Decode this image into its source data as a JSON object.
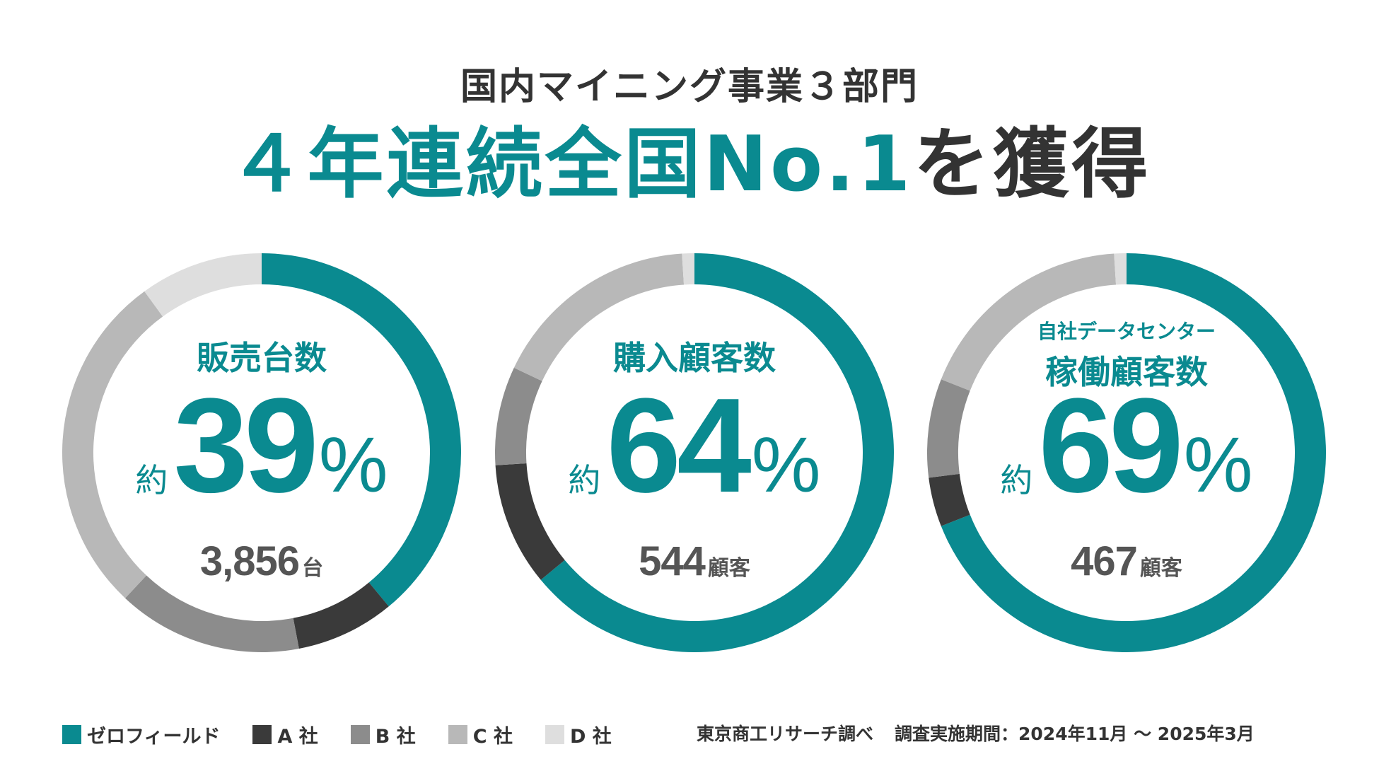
{
  "subtitle": "国内マイニング事業３部門",
  "headline": {
    "part_teal": "４年連続全国No.1",
    "part_dark": "を獲得"
  },
  "colors": {
    "teal": "#0a8a90",
    "dark": "#3a3a3a",
    "text": "#333333",
    "gray_text": "#555555"
  },
  "legend": [
    {
      "label": "ゼロフィールド",
      "color": "#0a8a90"
    },
    {
      "label": "A 社",
      "color": "#3a3a3a"
    },
    {
      "label": "B 社",
      "color": "#8c8c8c"
    },
    {
      "label": "C 社",
      "color": "#b8b8b8"
    },
    {
      "label": "D 社",
      "color": "#dedede"
    }
  ],
  "source": {
    "research": "東京商工リサーチ調べ",
    "period": "調査実施期間：2024年11月 〜 2025年3月"
  },
  "chart_data": [
    {
      "type": "pie",
      "donut": true,
      "pre_title": "",
      "title": "販売台数",
      "percent_prefix": "約",
      "percent_value": "39",
      "percent_unit": "%",
      "count_value": "3,856",
      "count_unit": "台",
      "categories": [
        "ゼロフィールド",
        "A 社",
        "B 社",
        "C 社",
        "D 社"
      ],
      "values": [
        39,
        8,
        15,
        28,
        10
      ],
      "colors": [
        "#0a8a90",
        "#3a3a3a",
        "#8c8c8c",
        "#b8b8b8",
        "#dedede"
      ]
    },
    {
      "type": "pie",
      "donut": true,
      "pre_title": "",
      "title": "購入顧客数",
      "percent_prefix": "約",
      "percent_value": "64",
      "percent_unit": "%",
      "count_value": "544",
      "count_unit": "顧客",
      "categories": [
        "ゼロフィールド",
        "A 社",
        "B 社",
        "C 社",
        "D 社"
      ],
      "values": [
        64,
        10,
        8,
        17,
        1
      ],
      "colors": [
        "#0a8a90",
        "#3a3a3a",
        "#8c8c8c",
        "#b8b8b8",
        "#dedede"
      ]
    },
    {
      "type": "pie",
      "donut": true,
      "pre_title": "自社データセンター",
      "title": "稼働顧客数",
      "percent_prefix": "約",
      "percent_value": "69",
      "percent_unit": "%",
      "count_value": "467",
      "count_unit": "顧客",
      "categories": [
        "ゼロフィールド",
        "A 社",
        "B 社",
        "C 社",
        "D 社"
      ],
      "values": [
        69,
        4,
        8,
        18,
        1
      ],
      "colors": [
        "#0a8a90",
        "#3a3a3a",
        "#8c8c8c",
        "#b8b8b8",
        "#dedede"
      ]
    }
  ]
}
